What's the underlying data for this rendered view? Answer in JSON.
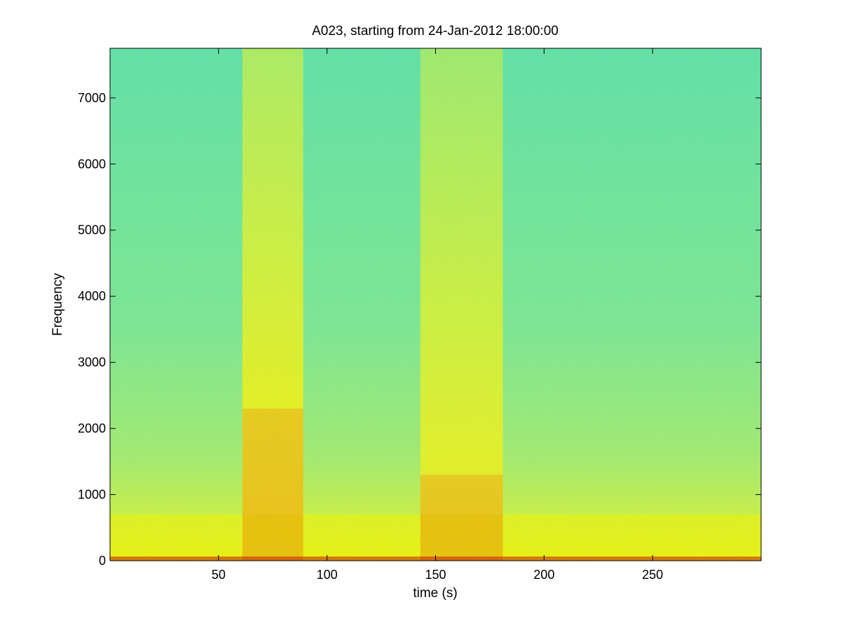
{
  "chart_data": {
    "type": "heatmap",
    "title": "A023, starting from 24-Jan-2012 18:00:00",
    "xlabel": "time (s)",
    "ylabel": "Frequency",
    "xlim": [
      0,
      300
    ],
    "ylim": [
      0,
      7750
    ],
    "xticks": [
      50,
      100,
      150,
      200,
      250
    ],
    "yticks": [
      0,
      1000,
      2000,
      3000,
      4000,
      5000,
      6000,
      7000
    ],
    "colors": {
      "background": "#7ee88c",
      "low": "#46dbb4",
      "mid": "#d6f03e",
      "high": "#f4f400",
      "peak": "#c81400"
    },
    "loud_segments": [
      {
        "t_start": 61,
        "t_end": 89,
        "high_freq_extent": 7750,
        "low_band_top": 2300
      },
      {
        "t_start": 143,
        "t_end": 181,
        "high_freq_extent": 7750,
        "low_band_top": 1300
      }
    ],
    "quiet_band_top_freq": 700,
    "grid": false
  }
}
